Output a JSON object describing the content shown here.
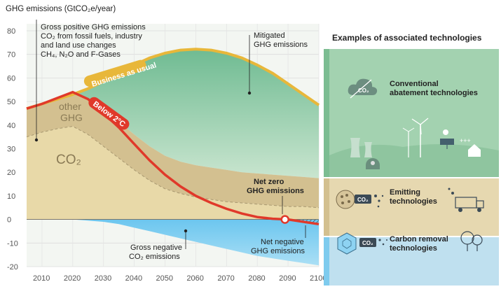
{
  "chart_data": {
    "type": "area",
    "title": "GHG emissions (GtCO₂e/year)",
    "x_ticks": [
      2010,
      2020,
      2030,
      2040,
      2050,
      2060,
      2070,
      2080,
      2090,
      2100
    ],
    "y_ticks": [
      80,
      70,
      60,
      50,
      40,
      30,
      20,
      10,
      0,
      -10,
      -20
    ],
    "xlim": [
      2005,
      2100
    ],
    "ylim": [
      -20,
      80
    ],
    "grid": true,
    "series": [
      {
        "name": "Business as usual",
        "x": [
          2005,
          2010,
          2015,
          2020,
          2025,
          2030,
          2035,
          2040,
          2045,
          2050,
          2055,
          2060,
          2065,
          2070,
          2075,
          2080,
          2085,
          2090,
          2095,
          2100
        ],
        "y": [
          47,
          49,
          51,
          53,
          55.5,
          58.5,
          62,
          65.5,
          68.5,
          70.5,
          71.8,
          72.2,
          71.8,
          70.5,
          68.5,
          65.5,
          62,
          57.5,
          53,
          48.5
        ]
      },
      {
        "name": "Below 2°C",
        "x": [
          2005,
          2010,
          2015,
          2020,
          2025,
          2030,
          2035,
          2040,
          2045,
          2050,
          2055,
          2060,
          2065,
          2070,
          2075,
          2080,
          2085,
          2090,
          2095,
          2100
        ],
        "y": [
          47,
          49,
          51.5,
          54,
          51,
          45,
          39,
          32,
          25,
          19,
          14,
          10,
          7,
          4.5,
          2.5,
          1,
          0.3,
          0,
          -1,
          -2
        ]
      },
      {
        "name": "other GHG",
        "x": [
          2005,
          2010,
          2015,
          2020,
          2025,
          2030,
          2035,
          2040,
          2045,
          2050,
          2055,
          2060,
          2065,
          2070,
          2075,
          2080,
          2085,
          2090,
          2095,
          2100
        ],
        "y": [
          47,
          49,
          51.5,
          54,
          51.5,
          46.5,
          41.5,
          36,
          31,
          27,
          24.5,
          23,
          22,
          21,
          20,
          19.5,
          19,
          18.5,
          18,
          17.5
        ]
      },
      {
        "name": "CO₂",
        "x": [
          2005,
          2010,
          2015,
          2020,
          2025,
          2030,
          2035,
          2040,
          2045,
          2050,
          2055,
          2060,
          2065,
          2070,
          2075,
          2080,
          2085,
          2090,
          2095,
          2100
        ],
        "y": [
          35,
          37,
          38.5,
          39.5,
          36,
          31,
          26,
          21,
          16.5,
          13,
          11,
          9.5,
          8.5,
          7.5,
          7,
          6.5,
          6,
          5.5,
          5.5,
          5
        ]
      },
      {
        "name": "Gross negative CO₂ emissions",
        "x": [
          2005,
          2010,
          2015,
          2020,
          2025,
          2030,
          2035,
          2040,
          2045,
          2050,
          2055,
          2060,
          2065,
          2070,
          2075,
          2080,
          2085,
          2090,
          2095,
          2100
        ],
        "y": [
          0,
          0,
          0,
          0,
          -0.5,
          -1,
          -2,
          -3.5,
          -5,
          -6.5,
          -8,
          -9.5,
          -11,
          -12.5,
          -14,
          -15.5,
          -16.5,
          -17.5,
          -18.5,
          -19.5
        ]
      }
    ],
    "annotations": {
      "gross_positive": [
        "Gross positive GHG emissions",
        "CO₂ from fossil fuels, industry",
        "and land use changes",
        "CH₄, N₂O and F-Gases"
      ],
      "mitigated": [
        "Mitigated",
        "GHG emissions"
      ],
      "bau": "Business as usual",
      "below2": "Below 2°C",
      "other_ghg": [
        "other",
        "GHG"
      ],
      "co2": "CO₂",
      "net_zero": [
        "Net zero",
        "GHG emissions"
      ],
      "net_negative": [
        "Net negative",
        "GHG emissions"
      ],
      "gross_negative": [
        "Gross negative",
        "CO₂ emissions"
      ]
    }
  },
  "panel": {
    "heading": "Examples of associated technologies",
    "conventional": [
      "Conventional",
      "abatement technologies"
    ],
    "emitting": [
      "Emitting",
      "technologies"
    ],
    "removal": [
      "Carbon removal",
      "technologies"
    ],
    "co2_badge": "CO₂"
  },
  "colors": {
    "green_area": "#a8d4b4",
    "tan_area": "#e8d9a8",
    "dark_tan": "#d3c090",
    "blue_area": "#7fcdef",
    "bau_line": "#e8b73a",
    "below2_line": "#e0392a",
    "panel_green": "#a3d2b0",
    "panel_tan": "#e6d8b0",
    "panel_blue": "#bfe0ef"
  }
}
